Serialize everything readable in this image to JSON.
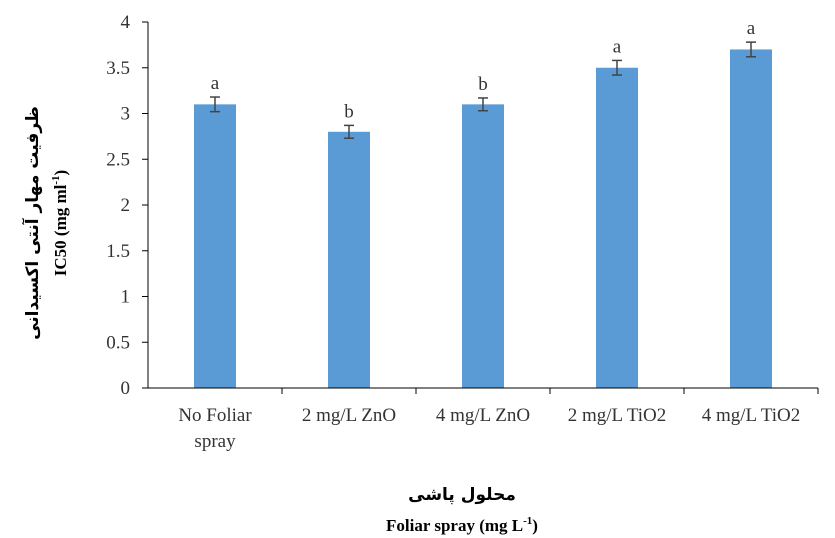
{
  "chart_data": {
    "type": "bar",
    "categories": [
      [
        "No Foliar",
        "spray"
      ],
      [
        "2 mg/L ZnO"
      ],
      [
        "4 mg/L ZnO"
      ],
      [
        "2 mg/L TiO2"
      ],
      [
        "4 mg/L  TiO2"
      ]
    ],
    "values": [
      3.1,
      2.8,
      3.1,
      3.5,
      3.7
    ],
    "errors": [
      0.08,
      0.07,
      0.07,
      0.08,
      0.08
    ],
    "significance": [
      "a",
      "b",
      "b",
      "a",
      "a"
    ],
    "ylim": [
      0,
      4
    ],
    "yticks": [
      "0",
      "0.5",
      "1",
      "1.5",
      "2",
      "2.5",
      "3",
      "3.5",
      "4"
    ],
    "ylabel_fa": "ظرفیت مهار آنتی اکسیدانی",
    "ylabel_en": "IC50 (mg ml",
    "ylabel_en_sup": "-1",
    "ylabel_en_end": ")",
    "xlabel_fa": "محلول پاشی",
    "xlabel_en": "Foliar spray (mg L",
    "xlabel_en_sup": "-1",
    "xlabel_en_end": ")",
    "bar_color": "#5B9BD5",
    "grid": false
  }
}
